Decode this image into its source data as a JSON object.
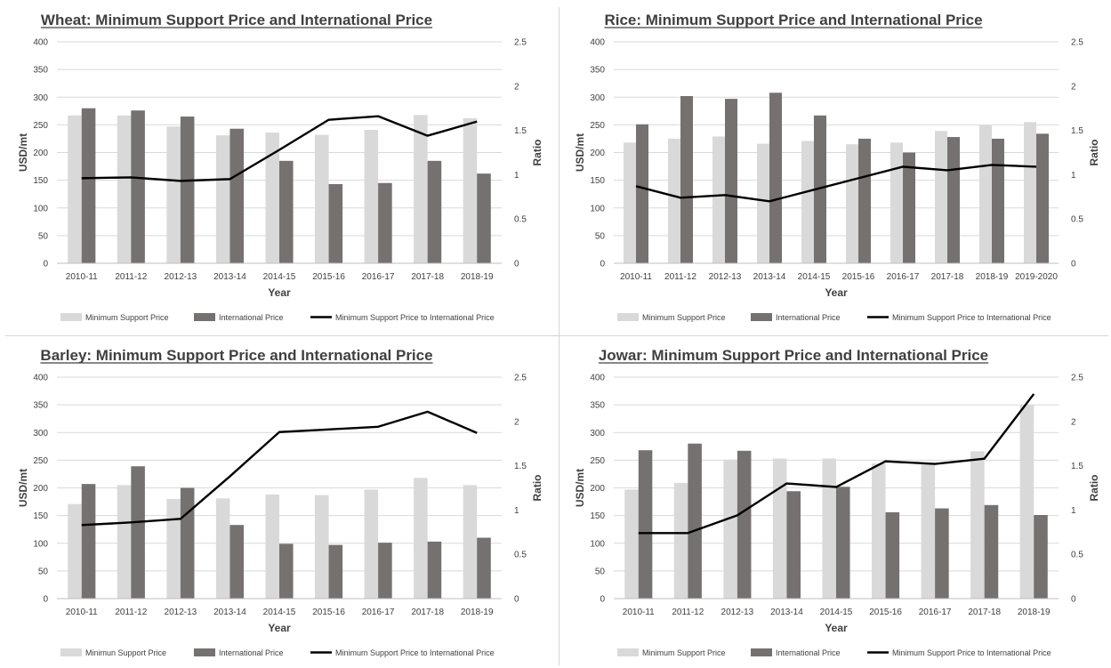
{
  "colors": {
    "msp": "#d9d9d9",
    "intl": "#767171",
    "ratio": "#000000",
    "axis_text": "#404040",
    "grid": "#d9d9d9"
  },
  "chart_data": [
    {
      "type": "bar",
      "title": "Wheat: Minimum Support Price and International Price",
      "xlabel": "Year",
      "ylabel": "USD/mt",
      "y2label": "Ratio",
      "ylim": [
        0,
        400
      ],
      "y2lim": [
        0,
        2.5
      ],
      "yticks": [
        "0",
        "50",
        "100",
        "150",
        "200",
        "250",
        "300",
        "350",
        "400"
      ],
      "y2ticks": [
        "0",
        "0.5",
        "1",
        "1.5",
        "2",
        "2.5"
      ],
      "grid": true,
      "legend_position": "bottom",
      "categories": [
        "2010-11",
        "2011-12",
        "2012-13",
        "2013-14",
        "2014-15",
        "2015-16",
        "2016-17",
        "2017-18",
        "2018-19"
      ],
      "series": [
        {
          "name": "Minimum Support Price",
          "kind": "bar",
          "axis": "left",
          "values": [
            267,
            267,
            247,
            231,
            236,
            232,
            241,
            268,
            262
          ]
        },
        {
          "name": "International Price",
          "kind": "bar",
          "axis": "left",
          "values": [
            280,
            276,
            265,
            243,
            185,
            143,
            145,
            185,
            162
          ]
        },
        {
          "name": "Minimum Support Price to International Price",
          "kind": "line",
          "axis": "right",
          "values": [
            0.96,
            0.97,
            0.93,
            0.95,
            1.28,
            1.62,
            1.66,
            1.44,
            1.6
          ]
        }
      ]
    },
    {
      "type": "bar",
      "title": "Rice: Minimum Support Price and International Price",
      "xlabel": "Year",
      "ylabel": "USD/mt",
      "y2label": "Ratio",
      "ylim": [
        0,
        400
      ],
      "y2lim": [
        0,
        2.5
      ],
      "yticks": [
        "0",
        "50",
        "100",
        "150",
        "200",
        "250",
        "300",
        "350",
        "400"
      ],
      "y2ticks": [
        "0",
        "0.5",
        "1",
        "1.5",
        "2",
        "2.5"
      ],
      "grid": true,
      "legend_position": "bottom",
      "categories": [
        "2010-11",
        "2011-12",
        "2012-13",
        "2013-14",
        "2014-15",
        "2015-16",
        "2016-17",
        "2017-18",
        "2018-19",
        "2019-2020"
      ],
      "series": [
        {
          "name": "Minimum Support Price",
          "kind": "bar",
          "axis": "left",
          "values": [
            218,
            225,
            229,
            216,
            221,
            215,
            218,
            239,
            249,
            255
          ]
        },
        {
          "name": "International Price",
          "kind": "bar",
          "axis": "left",
          "values": [
            251,
            302,
            297,
            308,
            267,
            225,
            200,
            228,
            225,
            234
          ]
        },
        {
          "name": "Minimum Support Price to International Price",
          "kind": "line",
          "axis": "right",
          "values": [
            0.87,
            0.74,
            0.77,
            0.7,
            0.83,
            0.96,
            1.09,
            1.05,
            1.11,
            1.09
          ]
        }
      ]
    },
    {
      "type": "bar",
      "title": "Barley: Minimum Support Price and International Price",
      "xlabel": "Year",
      "ylabel": "USD/mt",
      "y2label": "Ratio",
      "ylim": [
        0,
        400
      ],
      "y2lim": [
        0,
        2.5
      ],
      "yticks": [
        "0",
        "50",
        "100",
        "150",
        "200",
        "250",
        "300",
        "350",
        "400"
      ],
      "y2ticks": [
        "0",
        "0.5",
        "1",
        "1.5",
        "2",
        "2.5"
      ],
      "grid": true,
      "legend_position": "bottom",
      "categories": [
        "2010-11",
        "2011-12",
        "2012-13",
        "2013-14",
        "2014-15",
        "2015-16",
        "2016-17",
        "2017-18",
        "2018-19"
      ],
      "series": [
        {
          "name": "Minimun Support Price",
          "kind": "bar",
          "axis": "left",
          "values": [
            171,
            205,
            180,
            181,
            188,
            187,
            197,
            218,
            205
          ]
        },
        {
          "name": "International Price",
          "kind": "bar",
          "axis": "left",
          "values": [
            207,
            239,
            200,
            133,
            99,
            97,
            101,
            103,
            110
          ]
        },
        {
          "name": "Minimum Support Price to International Price",
          "kind": "line",
          "axis": "right",
          "values": [
            0.83,
            0.86,
            0.9,
            1.38,
            1.88,
            1.91,
            1.94,
            2.11,
            1.87
          ]
        }
      ]
    },
    {
      "type": "bar",
      "title": "Jowar: Minimum Support Price and International Price",
      "xlabel": "Year",
      "ylabel": "USD/mt",
      "y2label": "Ratio",
      "ylim": [
        0,
        400
      ],
      "y2lim": [
        0,
        2.5
      ],
      "yticks": [
        "0",
        "50",
        "100",
        "150",
        "200",
        "250",
        "300",
        "350",
        "400"
      ],
      "y2ticks": [
        "0",
        "0.5",
        "1",
        "1.5",
        "2",
        "2.5"
      ],
      "grid": true,
      "legend_position": "bottom",
      "categories": [
        "2010-11",
        "2011-12",
        "2012-13",
        "2013-14",
        "2014-15",
        "2015-16",
        "2016-17",
        "2017-18",
        "2018-19"
      ],
      "series": [
        {
          "name": "Minimum Support Price",
          "kind": "bar",
          "axis": "left",
          "values": [
            197,
            209,
            251,
            253,
            253,
            244,
            244,
            266,
            350
          ]
        },
        {
          "name": "International Price",
          "kind": "bar",
          "axis": "left",
          "values": [
            268,
            280,
            267,
            194,
            202,
            156,
            163,
            169,
            151
          ]
        },
        {
          "name": "Minimum Support Price to International Price",
          "kind": "line",
          "axis": "right",
          "values": [
            0.74,
            0.74,
            0.94,
            1.3,
            1.26,
            1.55,
            1.52,
            1.58,
            2.31
          ]
        }
      ]
    }
  ]
}
